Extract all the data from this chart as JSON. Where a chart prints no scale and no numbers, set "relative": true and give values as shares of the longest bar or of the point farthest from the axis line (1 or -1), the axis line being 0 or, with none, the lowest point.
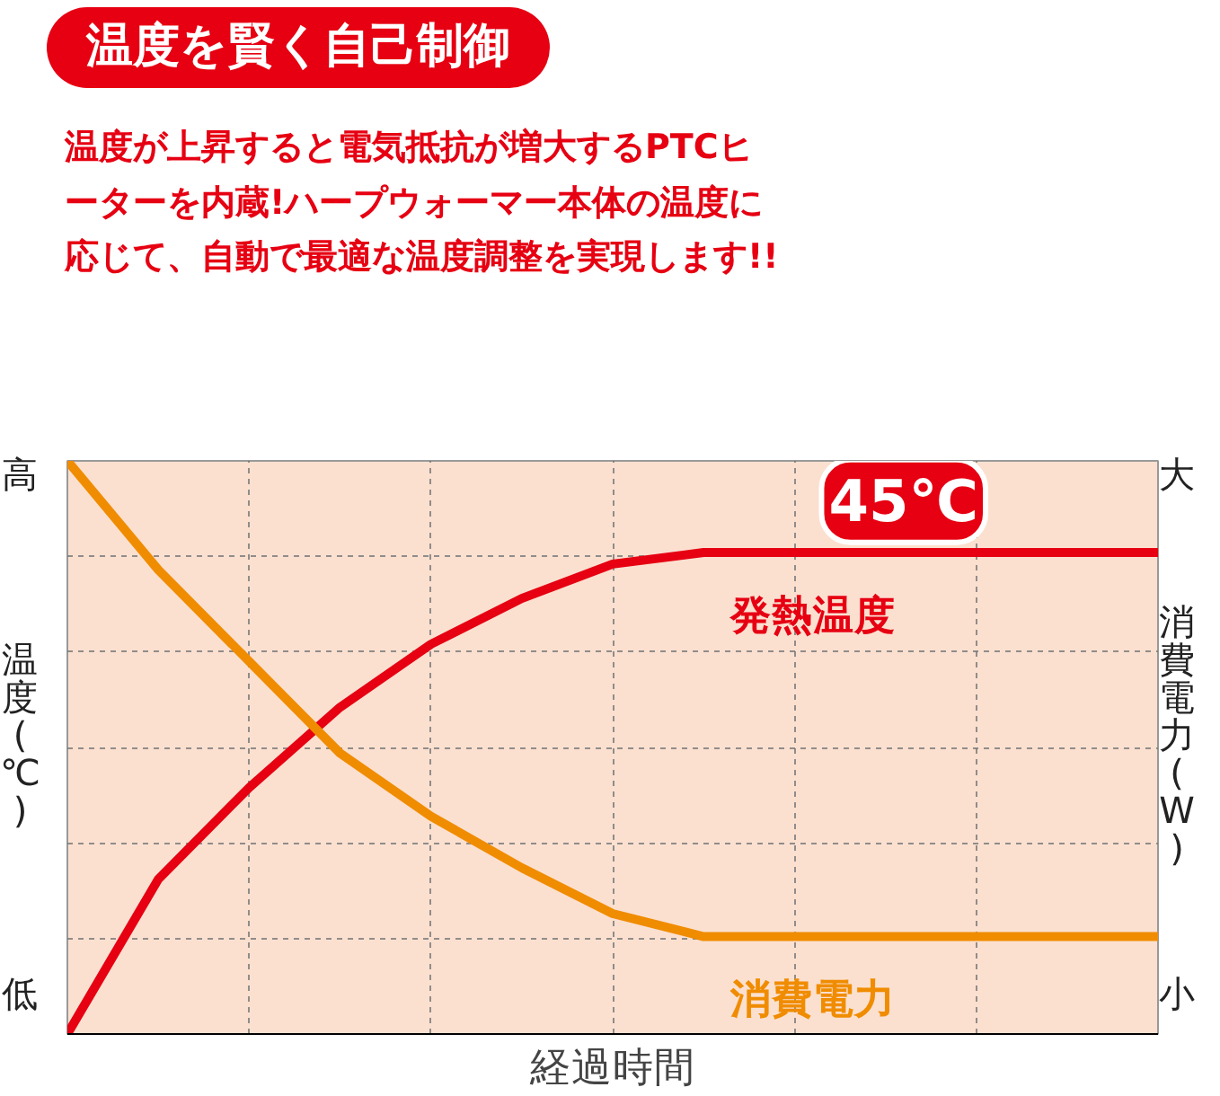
{
  "chart_data": {
    "type": "line",
    "relative": true,
    "title": "温度を賢く自己制御",
    "subtitle": "温度が上昇すると電気抵抗が増大するPTCヒーターを内蔵!ハープウォーマー本体の温度に応じて、自動で最適な温度調整を実現します!!",
    "xlabel": "経過時間",
    "ylabel": "温度(℃)",
    "y2label": "消費電力(W)",
    "categories": [
      null,
      null,
      null,
      null,
      null,
      null,
      null,
      null,
      null,
      null,
      null,
      null,
      null
    ],
    "series": [
      {
        "name": "発熱温度",
        "color": "#e60012",
        "values": [
          0,
          0.27,
          0.43,
          0.57,
          0.68,
          0.76,
          0.82,
          0.84,
          0.84,
          0.84,
          0.84,
          0.84,
          0.84
        ]
      },
      {
        "name": "消費電力",
        "color": "#f08c00",
        "values": [
          1.0,
          0.81,
          0.65,
          0.49,
          0.38,
          0.29,
          0.21,
          0.17,
          0.17,
          0.17,
          0.17,
          0.17,
          0.17
        ]
      }
    ],
    "annotations": [
      "高",
      "低",
      "大",
      "小",
      "45℃"
    ],
    "grid": true,
    "line_style": "solid",
    "marker": "none",
    "legend": false,
    "tick_labels": false
  }
}
